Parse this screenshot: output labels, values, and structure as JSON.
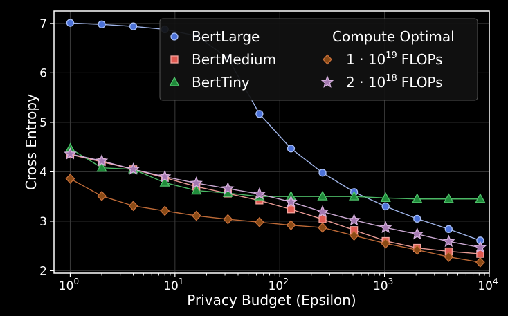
{
  "chart_data": {
    "type": "line",
    "xlabel": "Privacy Budget (Epsilon)",
    "ylabel": "Cross Entropy",
    "xscale": "log",
    "xlim": [
      0.7,
      10000
    ],
    "ylim": [
      1.95,
      7.25
    ],
    "grid": true,
    "x_ticks": [
      {
        "value": 1,
        "base": "10",
        "exp": "0"
      },
      {
        "value": 10,
        "base": "10",
        "exp": "1"
      },
      {
        "value": 100,
        "base": "10",
        "exp": "2"
      },
      {
        "value": 1000,
        "base": "10",
        "exp": "3"
      },
      {
        "value": 10000,
        "base": "10",
        "exp": "4"
      }
    ],
    "y_ticks": [
      2,
      3,
      4,
      5,
      6,
      7
    ],
    "x": [
      1,
      2,
      4,
      8,
      16,
      32,
      64,
      128,
      256,
      512,
      1024,
      2048,
      4096,
      8192
    ],
    "series": [
      {
        "name": "BertLarge",
        "marker": "circle",
        "color": "#4c72d8",
        "edge": "#a9bff5",
        "values": [
          7.01,
          6.98,
          6.94,
          6.88,
          6.75,
          6.3,
          5.17,
          4.47,
          3.98,
          3.59,
          3.3,
          3.05,
          2.84,
          2.61
        ]
      },
      {
        "name": "BertMedium",
        "marker": "square",
        "color": "#e05a52",
        "edge": "#f5a39d",
        "values": [
          4.35,
          4.2,
          4.05,
          3.88,
          3.7,
          3.56,
          3.42,
          3.24,
          3.04,
          2.82,
          2.6,
          2.46,
          2.39,
          2.34
        ]
      },
      {
        "name": "BertTiny",
        "marker": "triangle",
        "color": "#1f8a3a",
        "edge": "#4fc26a",
        "values": [
          4.47,
          4.08,
          4.05,
          3.78,
          3.62,
          3.57,
          3.5,
          3.5,
          3.5,
          3.5,
          3.47,
          3.45,
          3.45,
          3.45
        ]
      }
    ],
    "compute_optimal": {
      "title": "Compute Optimal",
      "series": [
        {
          "base": "1 · 10",
          "exp": "19",
          "unit": "FLOPs",
          "marker": "diamond",
          "color": "#8a4a16",
          "edge": "#c8703a",
          "values": [
            3.86,
            3.51,
            3.31,
            3.21,
            3.11,
            3.04,
            2.98,
            2.92,
            2.87,
            2.71,
            2.55,
            2.42,
            2.28,
            2.17
          ]
        },
        {
          "base": "2 · 10",
          "exp": "18",
          "unit": "FLOPs",
          "marker": "star",
          "color": "#a478b0",
          "edge": "#d6b2de",
          "values": [
            4.36,
            4.22,
            4.05,
            3.9,
            3.77,
            3.66,
            3.55,
            3.39,
            3.19,
            3.02,
            2.87,
            2.74,
            2.59,
            2.47
          ]
        }
      ]
    },
    "legend_position": "top-right"
  }
}
